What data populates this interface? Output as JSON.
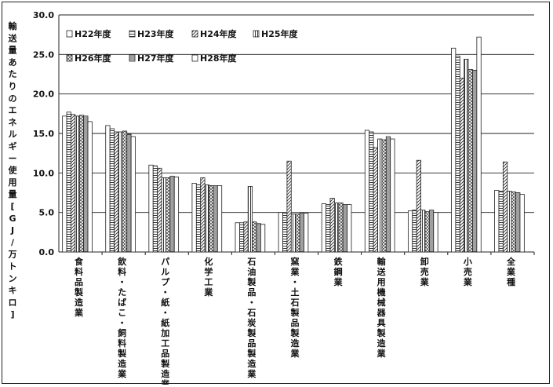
{
  "chart_data": {
    "type": "bar",
    "ylabel": "輸送量あたりのエネルギー使用量[GJ/万トンキロ]",
    "ylim": [
      0,
      30
    ],
    "yticks": [
      "0.0",
      "5.0",
      "10.0",
      "15.0",
      "20.0",
      "25.0",
      "30.0"
    ],
    "grid": true,
    "legend_position": "top-left",
    "categories": [
      "食料品製造業",
      "飲料・たばこ・飼料製造業",
      "パルプ・紙・紙加工品製造業",
      "化学工業",
      "石油製品・石炭製品製造業",
      "窯業・土石製品製造業",
      "鉄鋼業",
      "輸送用機械器具製造業",
      "卸売業",
      "小売業",
      "全業種"
    ],
    "series": [
      {
        "name": "H22年度",
        "values": [
          17.2,
          16.0,
          11.0,
          8.7,
          3.7,
          5.0,
          6.1,
          15.4,
          5.2,
          25.8,
          7.8
        ]
      },
      {
        "name": "H23年度",
        "values": [
          17.7,
          15.6,
          10.9,
          8.5,
          3.7,
          4.9,
          6.0,
          15.2,
          5.3,
          24.8,
          7.7
        ]
      },
      {
        "name": "H24年度",
        "values": [
          17.4,
          15.2,
          10.6,
          9.4,
          3.8,
          11.5,
          6.8,
          13.2,
          11.6,
          22.0,
          11.4
        ]
      },
      {
        "name": "H25年度",
        "values": [
          17.2,
          15.2,
          9.4,
          8.5,
          8.3,
          4.8,
          6.2,
          14.3,
          5.3,
          24.4,
          7.7
        ]
      },
      {
        "name": "H26年度",
        "values": [
          17.3,
          15.3,
          9.4,
          8.4,
          3.8,
          4.8,
          6.2,
          14.2,
          5.1,
          23.1,
          7.6
        ]
      },
      {
        "name": "H27年度",
        "values": [
          17.2,
          14.9,
          9.6,
          8.4,
          3.6,
          4.9,
          6.0,
          14.6,
          5.3,
          23.0,
          7.5
        ]
      },
      {
        "name": "H28年度",
        "values": [
          16.5,
          14.6,
          9.5,
          8.4,
          3.5,
          4.9,
          6.0,
          14.3,
          5.0,
          27.2,
          7.3
        ]
      }
    ]
  }
}
